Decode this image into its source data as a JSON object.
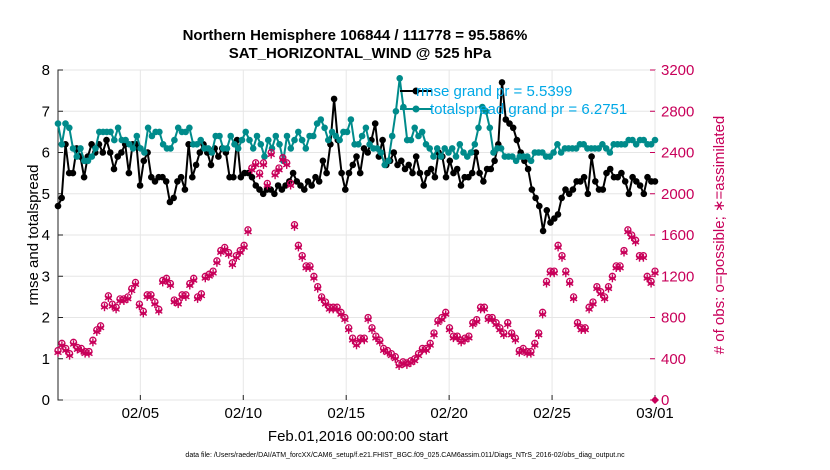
{
  "chart_data": {
    "type": "line",
    "title_line1": "Northern Hemisphere 106844 / 111778 = 95.586%",
    "title_line2": "SAT_HORIZONTAL_WIND @ 525 hPa",
    "xlabel": "Feb.01,2016 00:00:00 start",
    "ylabel_left": "rmse and totalspread",
    "ylabel_right": "# of obs: o=possible; ∗=assimilated",
    "x_ticks": [
      "02/05",
      "02/10",
      "02/15",
      "02/20",
      "02/25",
      "03/01"
    ],
    "x_tick_days": [
      5,
      10,
      15,
      20,
      25,
      30
    ],
    "xlim": [
      1,
      30
    ],
    "ylim_left": [
      0,
      8
    ],
    "y_ticks_left": [
      "0",
      "1",
      "2",
      "3",
      "4",
      "5",
      "6",
      "7",
      "8"
    ],
    "ylim_right": [
      0,
      3200
    ],
    "y_ticks_right": [
      "0",
      "400",
      "800",
      "1200",
      "1600",
      "2000",
      "2400",
      "2800",
      "3200"
    ],
    "legend": [
      "rmse grand pr = 5.5399",
      "totalspread grand pr = 6.2751"
    ],
    "footer": "data file: /Users/raeder/DAI/ATM_forcXX/CAM6_setup/f.e21.FHIST_BGC.f09_025.CAM6assim.011/Diags_NTrS_2016-02/obs_diag_output.nc",
    "series": [
      {
        "name": "rmse",
        "color": "#000000",
        "values": [
          4.7,
          4.9,
          6.2,
          5.5,
          5.5,
          6.1,
          5.9,
          5.4,
          5.9,
          6.2,
          6.0,
          6.2,
          6.0,
          6.3,
          6.0,
          5.6,
          5.9,
          6.0,
          6.2,
          5.5,
          6.2,
          6.2,
          5.2,
          5.8,
          6.0,
          5.4,
          5.3,
          5.4,
          5.4,
          5.3,
          4.8,
          4.9,
          5.3,
          5.4,
          5.1,
          6.2,
          5.4,
          5.7,
          6.0,
          6.2,
          6.0,
          5.7,
          6.1,
          5.9,
          6.1,
          6.0,
          5.4,
          5.4,
          6.3,
          5.4,
          5.5,
          5.5,
          5.4,
          5.2,
          5.1,
          5.0,
          5.1,
          5.1,
          5.0,
          5.2,
          5.1,
          5.2,
          5.3,
          5.5,
          5.3,
          5.2,
          5.1,
          5.3,
          5.2,
          5.4,
          5.3,
          5.8,
          5.5,
          6.2,
          7.3,
          6.3,
          5.5,
          5.1,
          5.5,
          5.7,
          5.9,
          5.5,
          6.1,
          6.0,
          6.3,
          6.7,
          5.9,
          6.3,
          5.7,
          5.8,
          6.0,
          5.7,
          5.8,
          5.6,
          5.7,
          5.5,
          5.9,
          5.5,
          5.2,
          5.5,
          5.6,
          5.4,
          6.0,
          5.9,
          5.4,
          5.8,
          5.5,
          5.6,
          5.2,
          5.4,
          5.4,
          5.5,
          6.0,
          5.5,
          5.3,
          5.6,
          5.6,
          5.8,
          6.2,
          7.7,
          6.8,
          6.7,
          6.6,
          6.3,
          6.0,
          5.8,
          5.6,
          5.1,
          4.9,
          4.7,
          4.1,
          4.6,
          4.3,
          4.4,
          4.5,
          4.9,
          5.1,
          5.0,
          5.1,
          5.3,
          5.3,
          5.4,
          5.0,
          5.9,
          5.3,
          5.1,
          5.1,
          5.5,
          5.6,
          5.4,
          5.4,
          5.5,
          5.3,
          5.0,
          5.4,
          5.3,
          5.2,
          5.0,
          5.4,
          5.3,
          5.3
        ]
      },
      {
        "name": "totalspread",
        "color": "#008b8b",
        "values": [
          6.7,
          6.2,
          6.7,
          6.6,
          6.1,
          5.9,
          6.1,
          5.8,
          5.8,
          5.9,
          6.1,
          6.5,
          6.5,
          6.5,
          6.5,
          6.3,
          6.6,
          6.3,
          6.3,
          6.2,
          6.1,
          6.4,
          6.1,
          6.0,
          6.6,
          6.4,
          6.5,
          6.5,
          6.2,
          6.1,
          6.1,
          6.3,
          6.6,
          6.5,
          6.5,
          6.6,
          6.2,
          6.2,
          6.3,
          6.1,
          6.1,
          6.0,
          6.4,
          6.4,
          6.1,
          6.1,
          6.4,
          6.2,
          6.1,
          6.3,
          6.5,
          6.3,
          6.1,
          6.4,
          6.2,
          5.9,
          6.3,
          6.1,
          6.4,
          6.2,
          5.8,
          6.4,
          6.1,
          6.3,
          6.5,
          6.3,
          6.1,
          6.4,
          6.4,
          6.7,
          6.8,
          6.6,
          6.3,
          6.5,
          6.4,
          6.3,
          6.5,
          6.5,
          6.8,
          6.2,
          6.2,
          6.4,
          6.6,
          6.2,
          6.1,
          6.1,
          6.0,
          5.7,
          5.8,
          6.4,
          7.0,
          7.8,
          7.1,
          6.3,
          6.3,
          6.6,
          6.4,
          6.5,
          6.2,
          6.1,
          5.9,
          6.1,
          5.9,
          6.1,
          6.0,
          6.1,
          5.9,
          6.2,
          6.0,
          5.9,
          6.0,
          6.2,
          6.6,
          7.1,
          7.0,
          6.6,
          6.0,
          6.1,
          6.1,
          5.9,
          5.9,
          5.9,
          5.8,
          5.9,
          5.9,
          5.9,
          5.8,
          6.0,
          6.0,
          6.0,
          5.9,
          5.9,
          6.0,
          6.2,
          6.0,
          6.1,
          6.1,
          6.1,
          6.1,
          6.2,
          6.2,
          6.1,
          6.1,
          6.1,
          6.1,
          6.2,
          6.1,
          6.0,
          6.2,
          6.2,
          6.2,
          6.2,
          6.3,
          6.3,
          6.2,
          6.3,
          6.3,
          6.2,
          6.2,
          6.3
        ]
      },
      {
        "name": "obs_possible",
        "color": "#c8005a",
        "axis": "right",
        "values": [
          480,
          550,
          500,
          450,
          560,
          510,
          500,
          470,
          470,
          580,
          680,
          720,
          920,
          1010,
          930,
          900,
          980,
          980,
          1000,
          1080,
          1140,
          930,
          860,
          1020,
          1020,
          950,
          880,
          1160,
          1180,
          1130,
          970,
          950,
          1020,
          1020,
          1130,
          1180,
          1000,
          1030,
          1200,
          1220,
          1250,
          1350,
          1450,
          1480,
          1430,
          1330,
          1400,
          1450,
          1500,
          1650,
          2250,
          2300,
          2200,
          2300,
          2100,
          2400,
          2200,
          2250,
          2350,
          2300,
          2100,
          1700,
          1500,
          1400,
          1300,
          1300,
          1200,
          1100,
          1000,
          950,
          900,
          900,
          900,
          850,
          800,
          700,
          600,
          550,
          600,
          600,
          800,
          700,
          620,
          580,
          500,
          480,
          450,
          420,
          350,
          370,
          360,
          380,
          400,
          450,
          500,
          500,
          550,
          650,
          770,
          800,
          850,
          700,
          620,
          620,
          580,
          600,
          620,
          750,
          780,
          900,
          900,
          800,
          800,
          750,
          700,
          650,
          750,
          650,
          600,
          480,
          500,
          470,
          470,
          550,
          650,
          850,
          1150,
          1250,
          1250,
          1500,
          1400,
          1250,
          1150,
          1000,
          750,
          700,
          700,
          900,
          950,
          1100,
          1050,
          1000,
          1100,
          1200,
          1300,
          1300,
          1450,
          1650,
          1600,
          1550,
          1400,
          1400,
          1200,
          1150,
          1250
        ]
      },
      {
        "name": "obs_assimilated",
        "color": "#c8005a",
        "axis": "right",
        "values": [
          460,
          530,
          480,
          430,
          540,
          490,
          480,
          450,
          450,
          560,
          660,
          700,
          900,
          990,
          910,
          880,
          960,
          960,
          980,
          1060,
          1120,
          910,
          840,
          1000,
          1000,
          930,
          860,
          1140,
          1160,
          1110,
          950,
          930,
          1000,
          1000,
          1110,
          1160,
          980,
          1010,
          1180,
          1200,
          1230,
          1330,
          1430,
          1460,
          1410,
          1310,
          1380,
          1430,
          1480,
          1630,
          2230,
          2280,
          2180,
          2280,
          2080,
          2380,
          2180,
          2230,
          2330,
          2280,
          2080,
          1680,
          1480,
          1380,
          1280,
          1280,
          1180,
          1080,
          980,
          930,
          880,
          880,
          880,
          830,
          780,
          680,
          580,
          530,
          580,
          580,
          780,
          680,
          600,
          560,
          480,
          460,
          430,
          400,
          330,
          350,
          340,
          360,
          380,
          430,
          480,
          480,
          530,
          630,
          750,
          780,
          830,
          680,
          600,
          600,
          560,
          580,
          600,
          730,
          760,
          880,
          880,
          780,
          780,
          730,
          680,
          630,
          730,
          630,
          580,
          460,
          480,
          450,
          450,
          530,
          630,
          830,
          1130,
          1230,
          1230,
          1480,
          1380,
          1230,
          1130,
          980,
          730,
          680,
          680,
          880,
          930,
          1080,
          1030,
          980,
          1080,
          1180,
          1280,
          1280,
          1430,
          1630,
          1580,
          1530,
          1380,
          1380,
          1180,
          1130,
          1230
        ]
      }
    ]
  }
}
